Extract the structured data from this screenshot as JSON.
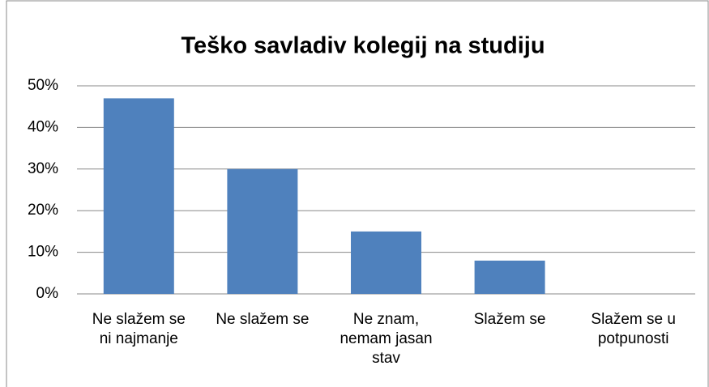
{
  "chart_data": {
    "type": "bar",
    "title": "Teško savladiv kolegij na studiju",
    "categories": [
      "Ne slažem se ni najmanje",
      "Ne slažem se",
      "Ne znam, nemam jasan stav",
      "Slažem se",
      "Slažem se u potpunosti"
    ],
    "values": [
      47,
      30,
      15,
      8,
      0
    ],
    "color": "#4f81bd",
    "ylim": [
      0,
      50
    ],
    "yticks": [
      {
        "value": 0,
        "label": "0%"
      },
      {
        "value": 10,
        "label": "10%"
      },
      {
        "value": 20,
        "label": "20%"
      },
      {
        "value": 30,
        "label": "30%"
      },
      {
        "value": 40,
        "label": "40%"
      },
      {
        "value": 50,
        "label": "50%"
      }
    ],
    "grid": true
  }
}
